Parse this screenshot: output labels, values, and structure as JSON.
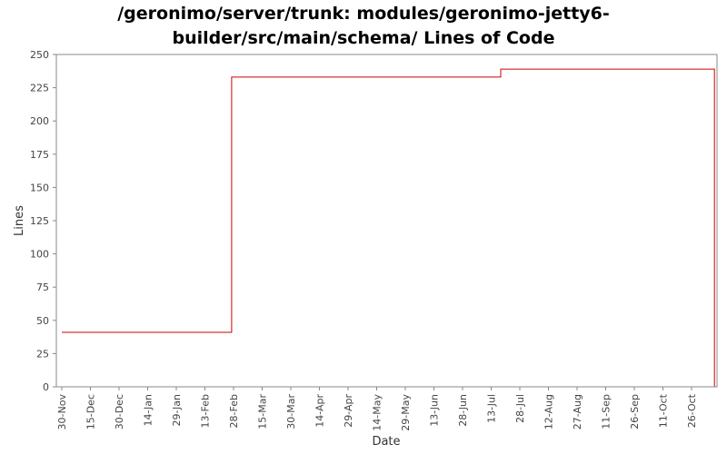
{
  "title_lines": [
    "/geronimo/server/trunk: modules/geronimo-jetty6-",
    "builder/src/main/schema/ Lines of Code"
  ],
  "colors": {
    "series": "#cc0000",
    "frame": "#888888",
    "text": "#444444"
  },
  "chart_data": {
    "type": "line",
    "step": true,
    "title": "/geronimo/server/trunk: modules/geronimo-jetty6-builder/src/main/schema/ Lines of Code",
    "xlabel": "Date",
    "ylabel": "Lines",
    "ylim": [
      0,
      250
    ],
    "yticks": [
      0,
      25,
      50,
      75,
      100,
      125,
      150,
      175,
      200,
      225,
      250
    ],
    "xlim": [
      "2005-11-30",
      "2006-11-11"
    ],
    "xticks": [
      "30-Nov",
      "15-Dec",
      "30-Dec",
      "14-Jan",
      "29-Jan",
      "13-Feb",
      "28-Feb",
      "15-Mar",
      "30-Mar",
      "14-Apr",
      "29-Apr",
      "14-May",
      "29-May",
      "13-Jun",
      "28-Jun",
      "13-Jul",
      "28-Jul",
      "12-Aug",
      "27-Aug",
      "11-Sep",
      "26-Sep",
      "11-Oct",
      "26-Oct"
    ],
    "grid": false,
    "series": [
      {
        "x": [
          "2005-11-30",
          "2006-02-27",
          "2006-07-18",
          "2006-11-07"
        ],
        "y": [
          41,
          233,
          239,
          0
        ]
      }
    ]
  }
}
